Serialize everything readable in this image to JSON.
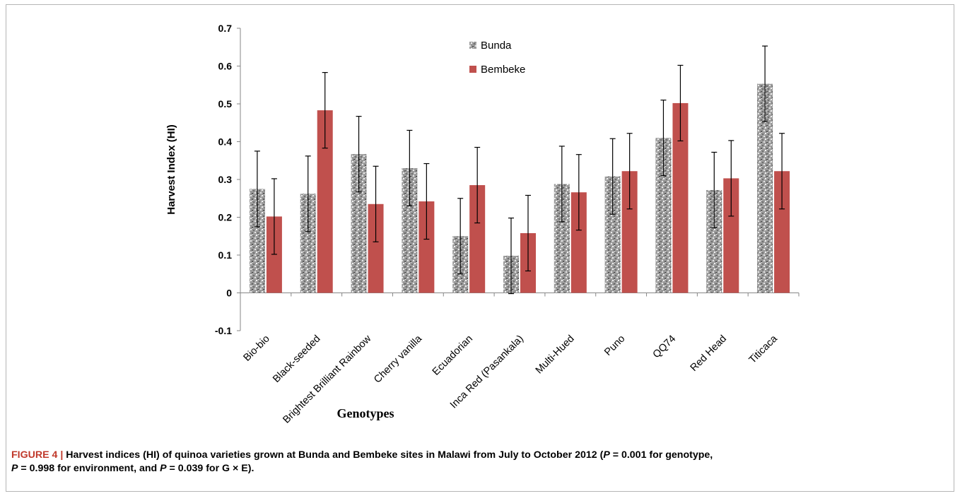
{
  "chart_data": {
    "type": "bar",
    "categories": [
      "Bio-bio",
      "Black-seeded",
      "Brightest Brilliant Rainbow",
      "Cherry vanilla",
      "Ecuadorian",
      "Inca Red (Pasankala)",
      "Multi-Hued",
      "Puno",
      "QQ74",
      "Red Head",
      "Titicaca"
    ],
    "series": [
      {
        "name": "Bunda",
        "values": [
          0.275,
          0.262,
          0.367,
          0.33,
          0.15,
          0.098,
          0.288,
          0.308,
          0.41,
          0.272,
          0.553
        ],
        "error": [
          0.1,
          0.1,
          0.1,
          0.1,
          0.1,
          0.1,
          0.1,
          0.1,
          0.1,
          0.1,
          0.1
        ],
        "color": "#8c8c8c"
      },
      {
        "name": "Bembeke",
        "values": [
          0.202,
          0.483,
          0.235,
          0.242,
          0.285,
          0.158,
          0.266,
          0.322,
          0.502,
          0.303,
          0.322
        ],
        "error": [
          0.1,
          0.1,
          0.1,
          0.1,
          0.1,
          0.1,
          0.1,
          0.1,
          0.1,
          0.1,
          0.1
        ],
        "color": "#c0504d"
      }
    ],
    "xlabel": "Genotypes",
    "ylabel": "Harvest Index (HI)",
    "ylim": [
      -0.1,
      0.7
    ],
    "yticks": [
      "-0.1",
      "0",
      "0.1",
      "0.2",
      "0.3",
      "0.4",
      "0.5",
      "0.6",
      "0.7"
    ],
    "legend_position": "top-center",
    "grid": false
  },
  "caption": {
    "figure_label": "FIGURE 4 | ",
    "part1": "Harvest indices (HI) of quinoa varieties grown at Bunda and Bembeke sites in Malawi from July to October 2012 (",
    "p1": "P",
    "part2": " = 0.001 for genotype,",
    "p2": "P",
    "part3": " = 0.998 for environment, and ",
    "p3": "P",
    "part4": " = 0.039 for G × E)."
  }
}
